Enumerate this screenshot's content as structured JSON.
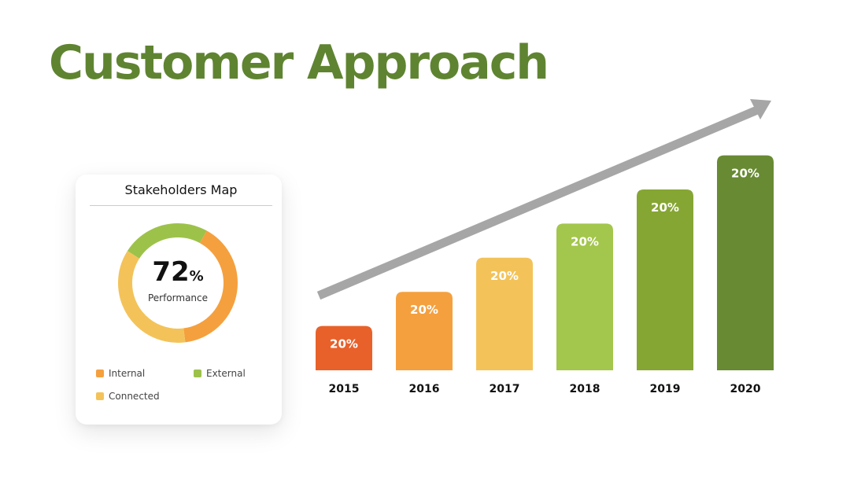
{
  "title": "Customer Approach",
  "stakeholders": {
    "title": "Stakeholders Map",
    "value": "72",
    "value_unit": "%",
    "label": "Performance",
    "segments": [
      {
        "name": "External",
        "fraction": 0.24,
        "color": "#9dc24a"
      },
      {
        "name": "Internal",
        "fraction": 0.4,
        "color": "#f5a03e"
      },
      {
        "name": "Connected",
        "fraction": 0.36,
        "color": "#f3c35a"
      }
    ],
    "legend": [
      {
        "label": "Internal",
        "color": "#f5a03e"
      },
      {
        "label": "External",
        "color": "#9dc24a"
      },
      {
        "label": "Connected",
        "color": "#f3c35a"
      }
    ]
  },
  "chart_data": {
    "type": "bar",
    "categories": [
      "2015",
      "2016",
      "2017",
      "2018",
      "2019",
      "2020"
    ],
    "values": [
      1,
      2,
      3,
      4,
      5,
      6
    ],
    "data_labels": [
      "20%",
      "20%",
      "20%",
      "20%",
      "20%",
      "20%"
    ],
    "colors": [
      "#e8612a",
      "#f5a03e",
      "#f3c35a",
      "#a3c64c",
      "#86a634",
      "#688a33"
    ],
    "ylim": [
      0,
      6.5
    ],
    "grid": false,
    "trend_arrow": true,
    "arrow_color": "#a6a6a6"
  }
}
